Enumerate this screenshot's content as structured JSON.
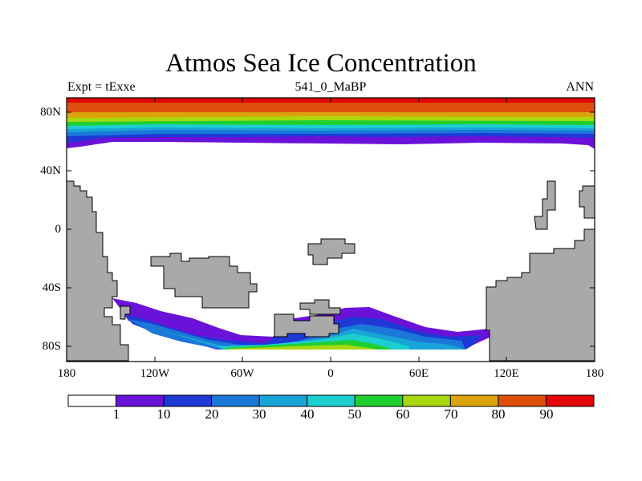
{
  "title": "Atmos Sea Ice Concentration",
  "subtitle_left": "Expt = tExxe",
  "subtitle_center": "541_0_MaBP",
  "subtitle_right": "ANN",
  "lat_labels": [
    "80N",
    "40N",
    "0",
    "40S",
    "80S"
  ],
  "lon_labels": [
    "180",
    "120W",
    "60W",
    "0",
    "60E",
    "120E",
    "180"
  ],
  "colorbar": {
    "tick_labels": [
      "1",
      "10",
      "20",
      "30",
      "40",
      "50",
      "60",
      "70",
      "80",
      "90"
    ],
    "colors": [
      "#ffffff",
      "#6a12d8",
      "#1f39d6",
      "#1a78d8",
      "#18a4d6",
      "#1ccfcf",
      "#1fcf30",
      "#a8d80f",
      "#dba30b",
      "#dd4f0b",
      "#e3060b"
    ]
  },
  "colors": {
    "land": "#a9a9a9",
    "ocean": "#ffffff"
  }
}
